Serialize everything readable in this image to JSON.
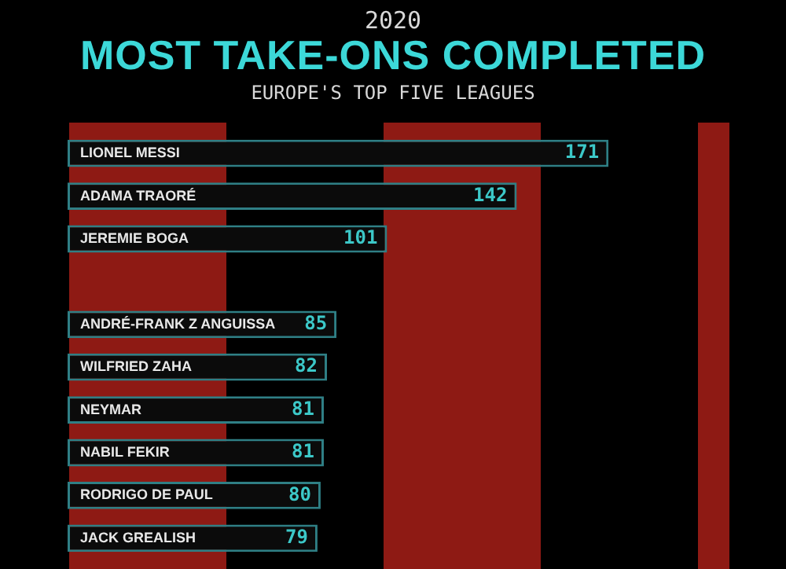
{
  "chart_data": {
    "type": "bar",
    "orientation": "horizontal",
    "title": "MOST TAKE-ONS COMPLETED",
    "subtitle": "EUROPE'S TOP FIVE LEAGUES",
    "annotations": [
      "2020"
    ],
    "categories": [
      "LIONEL MESSI",
      "ADAMA TRAORÉ",
      "JEREMIE BOGA",
      null,
      "ANDRÉ-FRANK Z ANGUISSA",
      "WILFRIED ZAHA",
      "NEYMAR",
      "NABIL FEKIR",
      "RODRIGO DE PAUL",
      "JACK GREALISH"
    ],
    "values": [
      171,
      142,
      101,
      null,
      85,
      82,
      81,
      81,
      80,
      79
    ],
    "color": "#0b0b0b",
    "data_labels": true,
    "tick_labels": false
  }
}
